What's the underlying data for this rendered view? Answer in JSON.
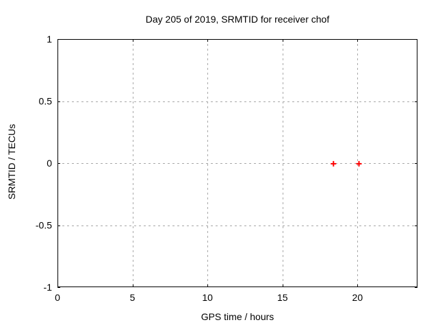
{
  "chart_data": {
    "type": "scatter",
    "title": "Day 205 of 2019, SRMTID for receiver chof",
    "xlabel": "GPS time / hours",
    "ylabel": "SRMTID / TECUs",
    "xlim": [
      0,
      24
    ],
    "ylim": [
      -1,
      1
    ],
    "x_ticks": [
      0,
      5,
      10,
      15,
      20
    ],
    "x_tick_labels": [
      "0",
      "5",
      "10",
      "15",
      "20"
    ],
    "y_ticks": [
      -1,
      -0.5,
      0,
      0.5,
      1
    ],
    "y_tick_labels": [
      "-1",
      "-0.5",
      "0",
      "0.5",
      "1"
    ],
    "grid": true,
    "legend": "none",
    "series": [
      {
        "name": "SRMTID",
        "marker": "plus",
        "color": "#ff0000",
        "points": [
          {
            "x": 18.4,
            "y": -0.005
          },
          {
            "x": 20.1,
            "y": -0.005
          }
        ]
      }
    ],
    "colors": {
      "background": "#ffffff",
      "border": "#000000",
      "grid": "#a8a8a8",
      "text": "#000000"
    }
  }
}
